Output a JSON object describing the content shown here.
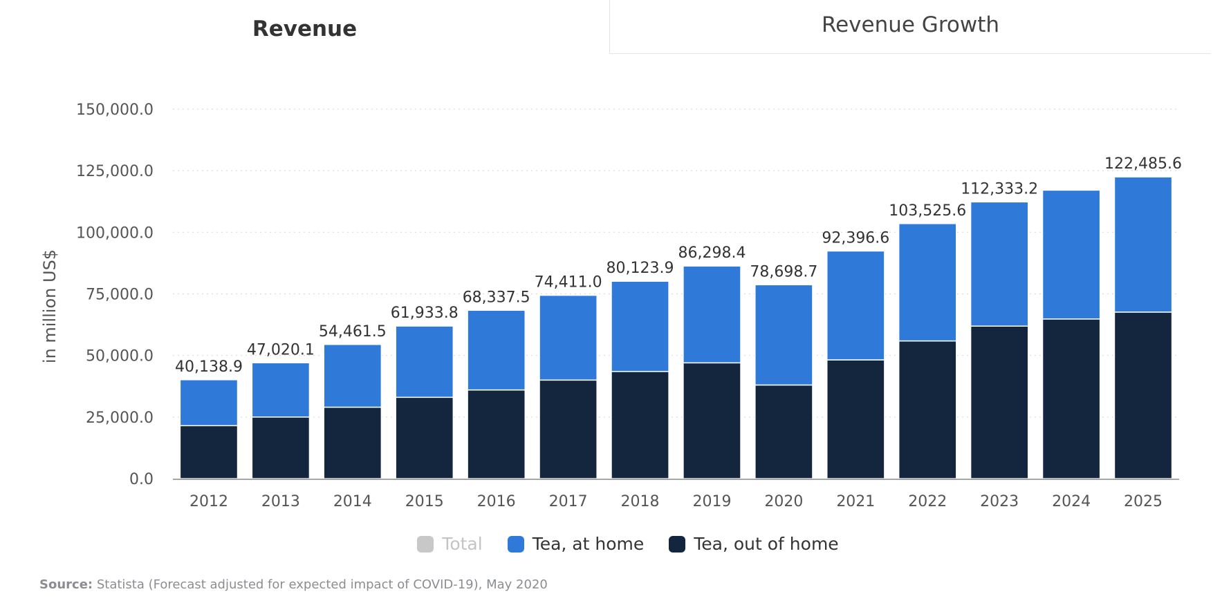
{
  "tabs": [
    {
      "label": "Revenue",
      "active": true
    },
    {
      "label": "Revenue Growth",
      "active": false
    }
  ],
  "colors": {
    "total": "#c8c8c8",
    "at_home": "#2f7ad9",
    "out_of_home": "#13263e",
    "grid": "#d9d9d9"
  },
  "legend": [
    {
      "label": "Total",
      "color": "#c8c8c8",
      "disabled": true
    },
    {
      "label": "Tea, at home",
      "color": "#2f7ad9",
      "disabled": false
    },
    {
      "label": "Tea, out of home",
      "color": "#13263e",
      "disabled": false
    }
  ],
  "source": {
    "label": "Source:",
    "text": "Statista (Forecast adjusted for expected impact of COVID-19), May 2020"
  },
  "chart_data": {
    "type": "bar",
    "stacked": true,
    "categories": [
      "2012",
      "2013",
      "2014",
      "2015",
      "2016",
      "2017",
      "2018",
      "2019",
      "2020",
      "2021",
      "2022",
      "2023",
      "2024",
      "2025"
    ],
    "series": [
      {
        "name": "Tea, out of home",
        "values": [
          21500,
          25000,
          29000,
          33000,
          36000,
          40000,
          43500,
          47000,
          38000,
          48200,
          55900,
          61900,
          64800,
          67600
        ]
      },
      {
        "name": "Tea, at home",
        "values": [
          18638.9,
          22020.1,
          25461.5,
          28933.8,
          32337.5,
          34411.0,
          36623.9,
          39298.4,
          40698.7,
          44196.6,
          47625.6,
          50433.2,
          52300,
          54885.6
        ]
      }
    ],
    "totals": [
      40138.9,
      47020.1,
      54461.5,
      61933.8,
      68337.5,
      74411.0,
      80123.9,
      86298.4,
      78698.7,
      92396.6,
      103525.6,
      112333.2,
      117100,
      122485.6
    ],
    "total_labels": [
      "40,138.9",
      "47,020.1",
      "54,461.5",
      "61,933.8",
      "68,337.5",
      "74,411.0",
      "80,123.9",
      "86,298.4",
      "78,698.7",
      "92,396.6",
      "103,525.6",
      "112,333.2",
      "",
      "122,485.6"
    ],
    "yticks": [
      0,
      25000,
      50000,
      75000,
      100000,
      125000,
      150000
    ],
    "ytick_labels": [
      "0.0",
      "25,000.0",
      "50,000.0",
      "75,000.0",
      "100,000.0",
      "125,000.0",
      "150,000.0"
    ],
    "ylim": [
      0,
      150000
    ],
    "ylabel": "in million US$",
    "xlabel": "",
    "grid": true,
    "legend_position": "bottom"
  }
}
